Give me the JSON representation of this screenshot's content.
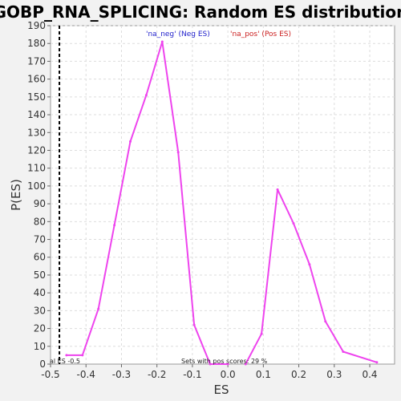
{
  "chart_data": {
    "type": "line",
    "title": "GOBP_RNA_SPLICING: Random ES distribution",
    "xlabel": "ES",
    "ylabel": "P(ES)",
    "xlim": [
      -0.5,
      0.47
    ],
    "ylim": [
      0,
      190
    ],
    "x_ticks": [
      -0.5,
      -0.4,
      -0.3,
      -0.2,
      -0.1,
      0.0,
      0.1,
      0.2,
      0.3,
      0.4
    ],
    "x_tick_labels": [
      "-0.5",
      "-0.4",
      "-0.3",
      "-0.2",
      "-0.1",
      "0.0",
      "0.1",
      "0.2",
      "0.3",
      "0.4"
    ],
    "y_ticks": [
      0,
      10,
      20,
      30,
      40,
      50,
      60,
      70,
      80,
      90,
      100,
      110,
      120,
      130,
      140,
      150,
      160,
      170,
      180,
      190
    ],
    "grid": true,
    "series": [
      {
        "name": "'na_neg' (Neg ES)",
        "color": "#ee44ee",
        "x": [
          -0.455,
          -0.41,
          -0.365,
          -0.32,
          -0.275,
          -0.23,
          -0.185,
          -0.14,
          -0.095,
          -0.05,
          0.0
        ],
        "y": [
          5,
          5,
          31,
          78,
          125,
          151,
          181,
          119,
          22,
          0,
          0
        ]
      },
      {
        "name": "'na_pos' (Pos ES)",
        "color": "#ee44ee",
        "x": [
          0.05,
          0.095,
          0.14,
          0.185,
          0.23,
          0.275,
          0.325,
          0.42
        ],
        "y": [
          0,
          17,
          98,
          79,
          56,
          24,
          7,
          1
        ]
      }
    ],
    "vline": {
      "x": -0.475,
      "style": "dashed",
      "color": "#000000"
    },
    "legend_placement": "top",
    "legend": [
      {
        "label": "'na_neg' (Neg ES)",
        "color": "#2222cc"
      },
      {
        "label": "'na_pos' (Pos ES)",
        "color": "#cc2222"
      }
    ],
    "annotations": {
      "real_es": "al ES -0.5",
      "pos_scores": "Sets with pos scores: 29 %"
    }
  }
}
